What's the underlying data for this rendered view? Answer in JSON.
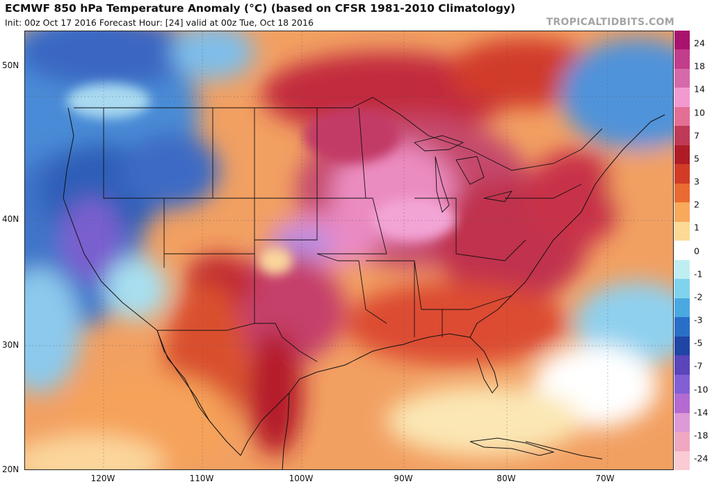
{
  "header": {
    "title": "ECMWF 850 hPa Temperature Anomaly (°C) (based on CFSR 1981-2010 Climatology)",
    "subtitle": "Init: 00z Oct 17 2016   Forecast Hour: [24]   valid at 00z Tue, Oct 18 2016",
    "brand": "TROPICALTIDBITS.COM"
  },
  "axes": {
    "lat_labels": [
      "50N",
      "40N",
      "30N",
      "20N"
    ],
    "lon_labels": [
      "120W",
      "110W",
      "100W",
      "90W",
      "80W",
      "70W"
    ]
  },
  "colorbar": {
    "labels": [
      "24",
      "18",
      "14",
      "10",
      "7",
      "5",
      "3",
      "2",
      "1",
      "0",
      "-1",
      "-2",
      "-3",
      "-5",
      "-7",
      "-10",
      "-14",
      "-18",
      "-24"
    ],
    "colors": [
      "#a8136e",
      "#c23d8c",
      "#d66aa8",
      "#f29ad0",
      "#e46f95",
      "#bf3a56",
      "#b01c26",
      "#d23c27",
      "#ea6b31",
      "#f8a95b",
      "#fcd995",
      "#ffffff",
      "#bfeef2",
      "#7fd3ec",
      "#4ba9e2",
      "#2a6fc7",
      "#1f45a5",
      "#5a45bb",
      "#8260d3",
      "#b36bd2",
      "#dd9ad8",
      "#f0a8c2",
      "#fbcbd4"
    ]
  }
}
